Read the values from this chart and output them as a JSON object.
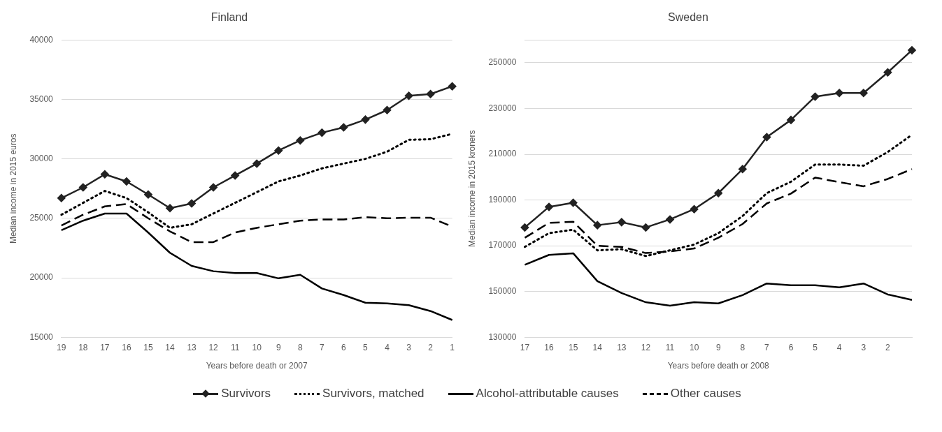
{
  "chart_data": [
    {
      "type": "line",
      "title": "Finland",
      "xlabel": "Years before death or 2007",
      "ylabel": "Median income in 2015 euros",
      "categories": [
        "19",
        "18",
        "17",
        "16",
        "15",
        "14",
        "13",
        "12",
        "11",
        "10",
        "9",
        "8",
        "7",
        "6",
        "5",
        "4",
        "3",
        "2",
        "1"
      ],
      "ylim": [
        15000,
        40000
      ],
      "yticks": [
        15000,
        20000,
        25000,
        30000,
        35000,
        40000
      ],
      "grid": "y",
      "legend": "bottom",
      "series": [
        {
          "name": "Survivors",
          "color": "#222222",
          "marker": "diamond",
          "line_style": "solid",
          "values": [
            26700,
            27600,
            28700,
            28100,
            27000,
            25850,
            26250,
            27600,
            28600,
            29600,
            30700,
            31550,
            32200,
            32650,
            33300,
            34100,
            35300,
            35450,
            36100
          ]
        },
        {
          "name": "Survivors, matched",
          "color": "#000000",
          "marker": "none",
          "line_style": "dotted",
          "values": [
            25300,
            26300,
            27300,
            26700,
            25500,
            24200,
            24500,
            25400,
            26300,
            27200,
            28100,
            28600,
            29200,
            29600,
            30000,
            30600,
            31600,
            31650,
            32100
          ]
        },
        {
          "name": "Alcohol-attributable causes",
          "color": "#000000",
          "marker": "none",
          "line_style": "solid",
          "values": [
            24000,
            24800,
            25400,
            25400,
            23800,
            22100,
            21000,
            20550,
            20400,
            20400,
            19950,
            20250,
            19100,
            18550,
            17900,
            17850,
            17700,
            17200,
            16450
          ]
        },
        {
          "name": "Other causes",
          "color": "#000000",
          "marker": "none",
          "line_style": "dashed",
          "values": [
            24400,
            25300,
            26000,
            26200,
            25000,
            23900,
            23000,
            23000,
            23800,
            24200,
            24500,
            24800,
            24900,
            24900,
            25100,
            25000,
            25050,
            25050,
            24300
          ]
        }
      ]
    },
    {
      "type": "line",
      "title": "Sweden",
      "xlabel": "Years before death or 2008",
      "ylabel": "Median income in 2015 kroners",
      "categories": [
        "17",
        "16",
        "15",
        "14",
        "13",
        "12",
        "11",
        "10",
        "9",
        "8",
        "7",
        "6",
        "5",
        "4",
        "3",
        "2",
        null
      ],
      "ylim": [
        130000,
        260000
      ],
      "yticks": [
        130000,
        150000,
        170000,
        190000,
        210000,
        230000,
        250000,
        {
          "value": 260000,
          "label": null
        }
      ],
      "grid": "y",
      "series": [
        {
          "color": "#222222",
          "marker": "diamond",
          "line_style": "solid",
          "values": [
            178000,
            187000,
            188800,
            179000,
            180300,
            178000,
            181500,
            186000,
            193000,
            203500,
            217500,
            225000,
            235200,
            236800,
            236800,
            245800,
            255500
          ]
        },
        {
          "color": "#000000",
          "marker": "none",
          "line_style": "dotted",
          "values": [
            169500,
            175500,
            177000,
            168000,
            168500,
            165500,
            168000,
            170500,
            175500,
            183000,
            193000,
            198000,
            205500,
            205500,
            205000,
            211000,
            218500
          ]
        },
        {
          "color": "#000000",
          "marker": "none",
          "line_style": "solid",
          "values": [
            161700,
            166000,
            166700,
            154500,
            149300,
            145300,
            143800,
            145300,
            144800,
            148400,
            153500,
            152700,
            152700,
            151800,
            153500,
            148700,
            146300
          ]
        },
        {
          "color": "#000000",
          "marker": "none",
          "line_style": "dashed",
          "values": [
            173500,
            180000,
            180500,
            170000,
            169500,
            166800,
            167500,
            168800,
            173500,
            179500,
            188500,
            192800,
            199800,
            197800,
            196000,
            199200,
            203500
          ]
        }
      ]
    }
  ]
}
